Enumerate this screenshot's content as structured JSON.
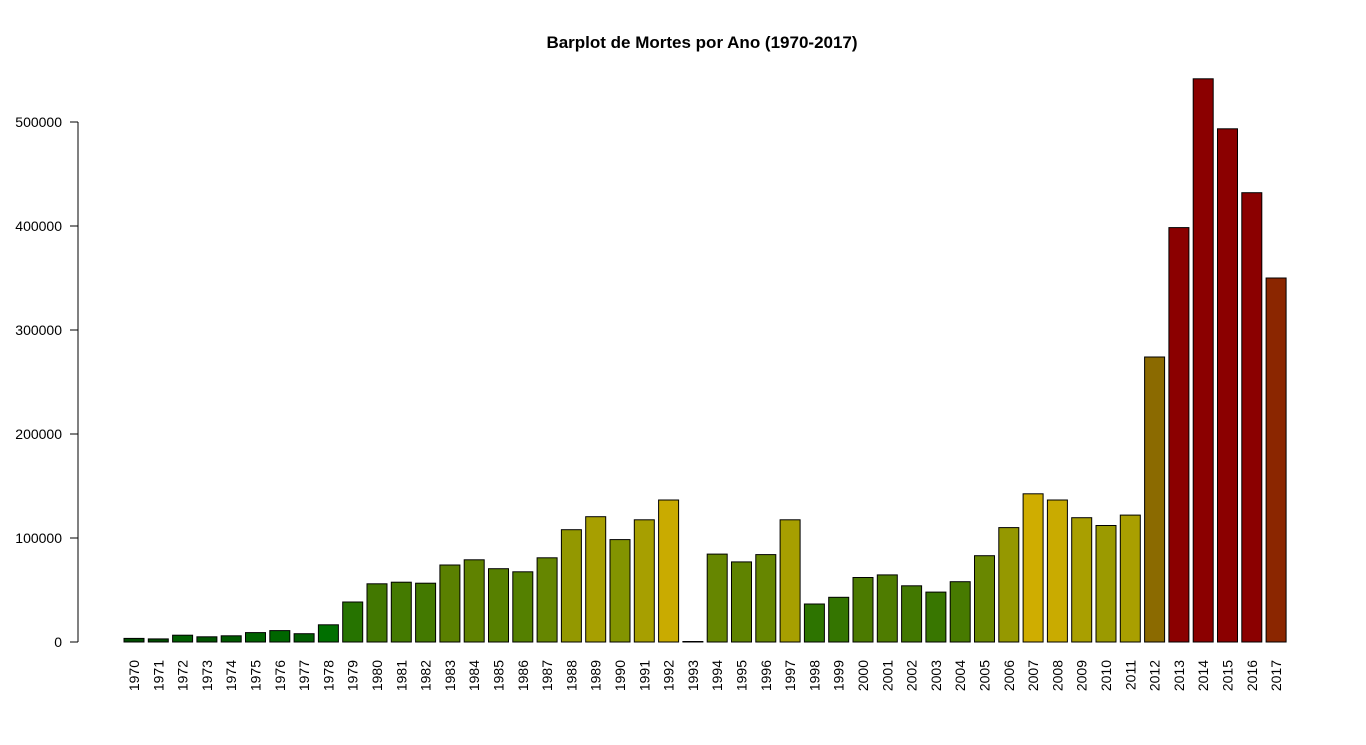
{
  "chart_data": {
    "type": "bar",
    "title": "Barplot de Mortes por Ano (1970-2017)",
    "xlabel": "",
    "ylabel": "",
    "ylim": [
      0,
      540000
    ],
    "yticks": [
      0,
      100000,
      200000,
      300000,
      400000,
      500000
    ],
    "ytick_labels": [
      "0",
      "100000",
      "200000",
      "300000",
      "400000",
      "500000"
    ],
    "grid": false,
    "legend": "none",
    "categories": [
      "1970",
      "1971",
      "1972",
      "1973",
      "1974",
      "1975",
      "1976",
      "1977",
      "1978",
      "1979",
      "1980",
      "1981",
      "1982",
      "1983",
      "1984",
      "1985",
      "1986",
      "1987",
      "1988",
      "1989",
      "1990",
      "1991",
      "1992",
      "1993",
      "1994",
      "1995",
      "1996",
      "1997",
      "1998",
      "1999",
      "2000",
      "2001",
      "2002",
      "2003",
      "2004",
      "2005",
      "2006",
      "2007",
      "2008",
      "2009",
      "2010",
      "2011",
      "2012",
      "2013",
      "2014",
      "2015",
      "2016",
      "2017"
    ],
    "values": [
      3500,
      3000,
      6500,
      5000,
      6000,
      9000,
      11000,
      8000,
      16500,
      38500,
      56000,
      57500,
      56500,
      74000,
      79000,
      70500,
      67500,
      81000,
      108000,
      120500,
      98500,
      117500,
      136500,
      0,
      84500,
      77000,
      84000,
      117500,
      36500,
      43000,
      62000,
      64500,
      54000,
      48000,
      58000,
      83000,
      110000,
      142500,
      136500,
      119500,
      112000,
      122000,
      274000,
      398500,
      541500,
      493500,
      432000,
      350000
    ],
    "colors": [
      "#004d00",
      "#004d00",
      "#005e00",
      "#005400",
      "#005a00",
      "#006200",
      "#006600",
      "#005e00",
      "#006f00",
      "#267300",
      "#427800",
      "#447a00",
      "#437900",
      "#5a8000",
      "#5f8200",
      "#578000",
      "#548000",
      "#658600",
      "#939800",
      "#a79f00",
      "#839400",
      "#a79f00",
      "#c9ab00",
      "#000000",
      "#668600",
      "#5f8300",
      "#668600",
      "#a79f00",
      "#2d7400",
      "#347500",
      "#4b7a00",
      "#4e7c00",
      "#427800",
      "#387600",
      "#477a00",
      "#698700",
      "#959800",
      "#cfad00",
      "#c9ab00",
      "#a99f00",
      "#9b9a00",
      "#a99f00",
      "#8b6a00",
      "#8b0000",
      "#8b0000",
      "#8b0000",
      "#8b0000",
      "#8b2600"
    ]
  }
}
